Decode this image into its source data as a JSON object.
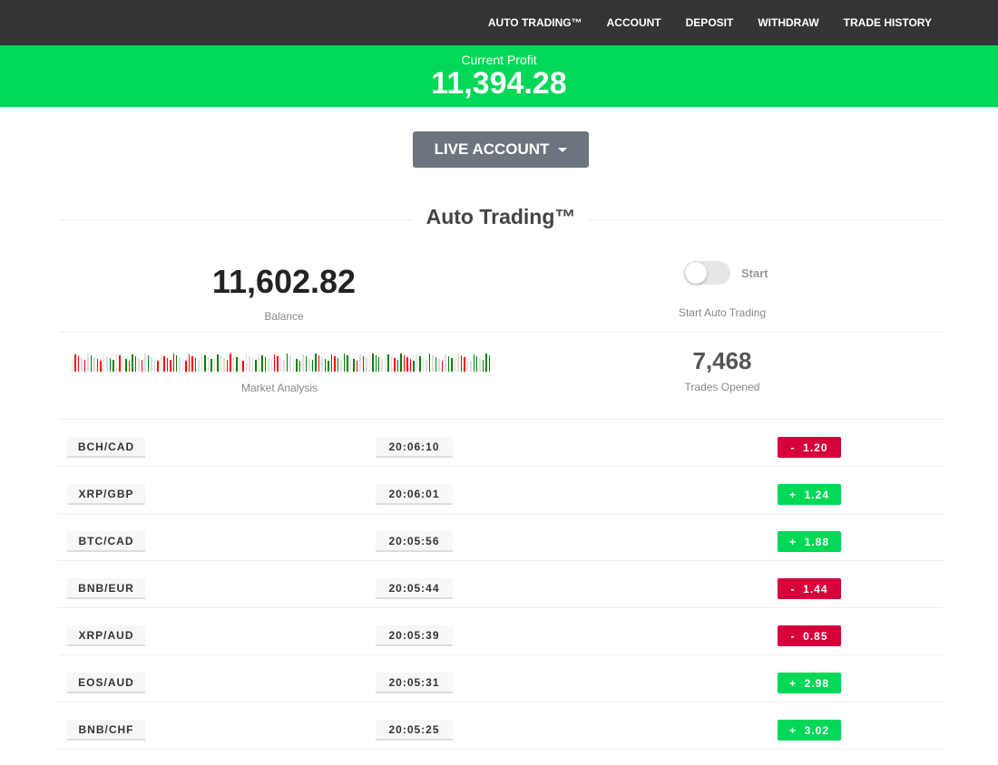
{
  "nav": {
    "items": [
      "AUTO TRADING™",
      "ACCOUNT",
      "DEPOSIT",
      "WITHDRAW",
      "TRADE HISTORY"
    ]
  },
  "profit": {
    "label": "Current Profit",
    "value": "11,394.28"
  },
  "account_button": "LIVE ACCOUNT",
  "section_title": "Auto Trading™",
  "balance": {
    "value": "11,602.82",
    "label": "Balance"
  },
  "toggle": {
    "label": "Start",
    "caption": "Start Auto Trading",
    "on": false
  },
  "market_analysis": {
    "label": "Market Analysis",
    "bars": "xrrxrxgxrrxxggxrxgrggxrxgxxrxrrrrgxxrrrrxxgxgxgxxrrxgxrxxxgxggxxrrxxgxxggxgxggrxgggrgxggxgrxrxxgggxxgxrggrrrgxgxxgxgxrxggxxrrxxggxggg",
    "colors": {
      "r": "#ff0000",
      "g": "#008000",
      "x": "#dddddd"
    }
  },
  "trades_opened": {
    "value": "7,468",
    "label": "Trades Opened"
  },
  "trades": [
    {
      "pair": "BCH/CAD",
      "time": "20:06:10",
      "change": "-  1.20",
      "dir": "neg"
    },
    {
      "pair": "XRP/GBP",
      "time": "20:06:01",
      "change": "+  1.24",
      "dir": "pos"
    },
    {
      "pair": "BTC/CAD",
      "time": "20:05:56",
      "change": "+  1.88",
      "dir": "pos"
    },
    {
      "pair": "BNB/EUR",
      "time": "20:05:44",
      "change": "-  1.44",
      "dir": "neg"
    },
    {
      "pair": "XRP/AUD",
      "time": "20:05:39",
      "change": "-  0.85",
      "dir": "neg"
    },
    {
      "pair": "EOS/AUD",
      "time": "20:05:31",
      "change": "+  2.98",
      "dir": "pos"
    },
    {
      "pair": "BNB/CHF",
      "time": "20:05:25",
      "change": "+  3.02",
      "dir": "pos"
    }
  ],
  "colors": {
    "accent_green": "#00d857",
    "negative_red": "#d6003a",
    "nav_bg": "#343434"
  }
}
